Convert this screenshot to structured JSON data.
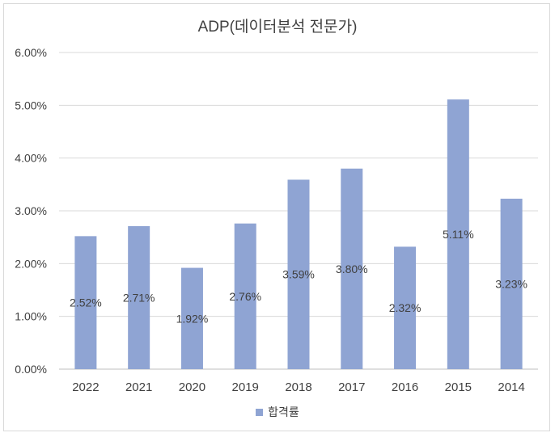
{
  "chart_data": {
    "type": "bar",
    "title": "ADP(데이터분석 전문가)",
    "categories": [
      "2022",
      "2021",
      "2020",
      "2019",
      "2018",
      "2017",
      "2016",
      "2015",
      "2014"
    ],
    "series": [
      {
        "name": "합격률",
        "values": [
          2.52,
          2.71,
          1.92,
          2.76,
          3.59,
          3.8,
          2.32,
          5.11,
          3.23
        ],
        "color": "#8fa4d3"
      }
    ],
    "data_labels": [
      "2.52%",
      "2.71%",
      "1.92%",
      "2.76%",
      "3.59%",
      "3.80%",
      "2.32%",
      "5.11%",
      "3.23%"
    ],
    "y_ticks": [
      "0.00%",
      "1.00%",
      "2.00%",
      "3.00%",
      "4.00%",
      "5.00%",
      "6.00%"
    ],
    "ylim": [
      0,
      6
    ],
    "xlabel": "",
    "ylabel": "",
    "grid": true,
    "legend_position": "bottom"
  }
}
